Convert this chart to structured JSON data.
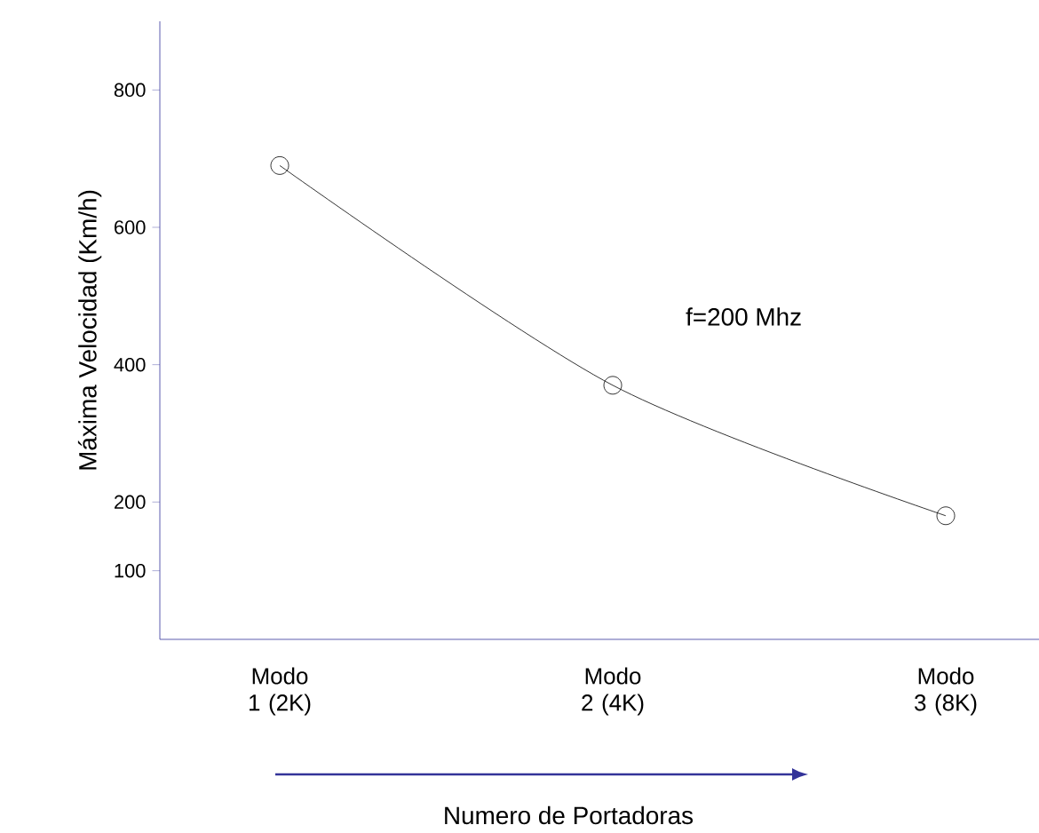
{
  "chart_data": {
    "type": "line",
    "xlabel": "Numero de Portadoras",
    "ylabel": "Máxima Velocidad (Km/h)",
    "categories": [
      "Modo 1 (2K)",
      "Modo 2 (4K)",
      "Modo 3 (8K)"
    ],
    "series": [
      {
        "color": "#000000",
        "values": [
          690,
          370,
          180
        ]
      }
    ],
    "ylim": [
      0,
      900
    ],
    "yticks": [
      100,
      200,
      400,
      600,
      800
    ],
    "annotations": [
      "f=200 Mhz"
    ],
    "marker": "circle",
    "line_style": "solid",
    "grid": false
  }
}
